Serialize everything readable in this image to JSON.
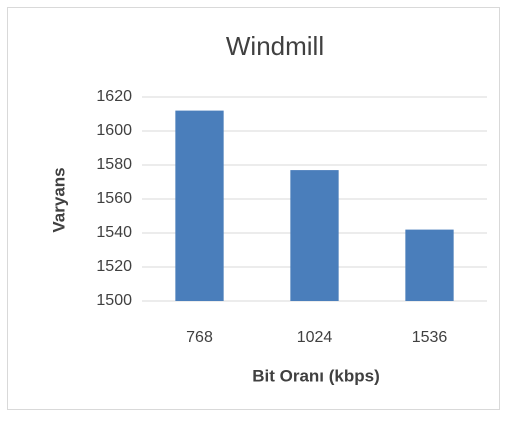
{
  "chart_data": {
    "type": "bar",
    "title": "Windmill",
    "x_label": "Bit Oranı (kbps)",
    "y_label": "Varyans",
    "categories": [
      "768",
      "1024",
      "1536"
    ],
    "values": [
      1612,
      1577,
      1542
    ],
    "color": "#4a7ebb",
    "ylim": [
      1500,
      1620
    ],
    "yticks": [
      1500,
      1520,
      1540,
      1560,
      1580,
      1600,
      1620
    ],
    "grid": true
  }
}
